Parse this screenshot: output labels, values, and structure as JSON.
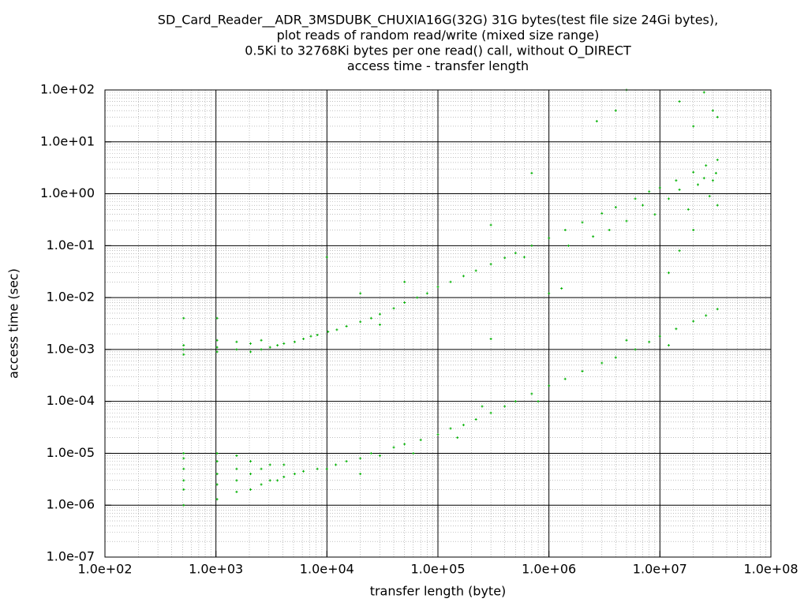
{
  "chart_data": {
    "type": "scatter",
    "title": [
      "SD_Card_Reader__ADR_3MSDUBK_CHUXIA16G(32G) 31G bytes(test file size 24Gi bytes),",
      "plot reads of random read/write (mixed size range)",
      "0.5Ki to 32768Ki bytes per one read() call, without O_DIRECT",
      "access time - transfer length"
    ],
    "x_label": "transfer length (byte)",
    "y_label": "access time (sec)",
    "xlog": true,
    "ylog": true,
    "grid": true,
    "minor_grid": true,
    "color": "#00b000",
    "xlim": [
      100,
      100000000
    ],
    "ylim": [
      1e-07,
      100
    ],
    "xticks": [
      {
        "value": 100,
        "label": "1.0e+02"
      },
      {
        "value": 1000,
        "label": "1.0e+03"
      },
      {
        "value": 10000,
        "label": "1.0e+04"
      },
      {
        "value": 100000,
        "label": "1.0e+05"
      },
      {
        "value": 1000000,
        "label": "1.0e+06"
      },
      {
        "value": 10000000,
        "label": "1.0e+07"
      },
      {
        "value": 100000000,
        "label": "1.0e+08"
      }
    ],
    "yticks": [
      {
        "value": 1e-07,
        "label": "1.0e-07"
      },
      {
        "value": 1e-06,
        "label": "1.0e-06"
      },
      {
        "value": 1e-05,
        "label": "1.0e-05"
      },
      {
        "value": 0.0001,
        "label": "1.0e-04"
      },
      {
        "value": 0.001,
        "label": "1.0e-03"
      },
      {
        "value": 0.01,
        "label": "1.0e-02"
      },
      {
        "value": 0.1,
        "label": "1.0e-01"
      },
      {
        "value": 1,
        "label": "1.0e+00"
      },
      {
        "value": 10,
        "label": "1.0e+01"
      },
      {
        "value": 100,
        "label": "1.0e+02"
      }
    ],
    "x": [
      512,
      512,
      512,
      512,
      1024,
      1024,
      1024,
      1024,
      1536,
      1536,
      2048,
      2048,
      2560,
      2560,
      3072,
      3584,
      4096,
      5120,
      6144,
      7168,
      8192,
      10240,
      12288,
      15000,
      20000,
      25000,
      30000,
      40000,
      50000,
      65000,
      80000,
      100000,
      130000,
      170000,
      220000,
      300000,
      400000,
      500000,
      700000,
      1000000,
      1400000,
      2000000,
      3000000,
      4000000,
      6000000,
      8000000,
      10000000,
      14000000,
      20000000,
      26000000,
      33000000,
      1500000,
      2500000,
      3500000,
      5000000,
      7000000,
      9000000,
      12000000,
      15000000,
      18000000,
      22000000,
      25000000,
      28000000,
      30000000,
      32000000,
      33000000,
      20000000,
      15000000,
      1300000,
      600000,
      12000000,
      5000000,
      2700000,
      4000000,
      15000000,
      25000000,
      30000000,
      33000000,
      20000000,
      10000,
      20000,
      300000,
      700000,
      30000,
      300000,
      1000000,
      50000,
      512,
      512,
      512,
      512,
      512,
      512,
      1024,
      1024,
      1024,
      1024,
      1024,
      1536,
      1536,
      1536,
      1536,
      2048,
      2048,
      2048,
      2560,
      2560,
      3072,
      3072,
      3584,
      4096,
      4096,
      5120,
      6144,
      8192,
      10000,
      12000,
      15000,
      20000,
      25000,
      30000,
      40000,
      50000,
      70000,
      100000,
      130000,
      170000,
      220000,
      300000,
      400000,
      500000,
      700000,
      1000000,
      1400000,
      2000000,
      3000000,
      4000000,
      6000000,
      8000000,
      10000000,
      14000000,
      20000000,
      26000000,
      33000000,
      20000,
      60000,
      150000,
      250000,
      800000,
      5000000,
      12000000
    ],
    "y": [
      0.0008,
      0.001,
      0.0012,
      0.004,
      0.0009,
      0.0011,
      0.0015,
      0.004,
      0.001,
      0.0014,
      0.0009,
      0.0013,
      0.001,
      0.0015,
      0.0011,
      0.0012,
      0.0013,
      0.0014,
      0.0016,
      0.0018,
      0.0019,
      0.0022,
      0.0024,
      0.0028,
      0.0034,
      0.004,
      0.0048,
      0.0062,
      0.008,
      0.01,
      0.012,
      0.016,
      0.02,
      0.026,
      0.033,
      0.044,
      0.058,
      0.072,
      0.1,
      0.14,
      0.2,
      0.28,
      0.42,
      0.55,
      0.8,
      1.1,
      1.3,
      1.8,
      2.6,
      3.5,
      4.5,
      0.1,
      0.15,
      0.2,
      0.3,
      0.6,
      0.4,
      0.8,
      1.2,
      0.5,
      1.5,
      2.0,
      0.9,
      1.8,
      2.5,
      0.6,
      0.2,
      0.08,
      0.015,
      0.06,
      0.03,
      100,
      25,
      40,
      60,
      90,
      40,
      30,
      20,
      0.06,
      0.012,
      0.25,
      2.5,
      0.003,
      0.0016,
      0.012,
      0.02,
      1e-06,
      2e-06,
      3e-06,
      5e-06,
      8e-06,
      1e-05,
      1.3e-06,
      2.5e-06,
      4e-06,
      7e-06,
      1e-05,
      1.8e-06,
      3e-06,
      5e-06,
      9e-06,
      2e-06,
      4e-06,
      7e-06,
      2.5e-06,
      5e-06,
      3e-06,
      6e-06,
      3e-06,
      3.5e-06,
      6e-06,
      4e-06,
      4.5e-06,
      5e-06,
      5e-06,
      6e-06,
      7e-06,
      8e-06,
      1e-05,
      9e-06,
      1.3e-05,
      1.5e-05,
      1.8e-05,
      2.3e-05,
      3e-05,
      3.5e-05,
      4.5e-05,
      6e-05,
      8e-05,
      0.0001,
      0.00014,
      0.0002,
      0.00027,
      0.00038,
      0.00055,
      0.0007,
      0.001,
      0.0014,
      0.0018,
      0.0025,
      0.0035,
      0.0045,
      0.006,
      4e-06,
      1e-05,
      2e-05,
      8e-05,
      0.0001,
      0.0015,
      0.0012
    ]
  }
}
